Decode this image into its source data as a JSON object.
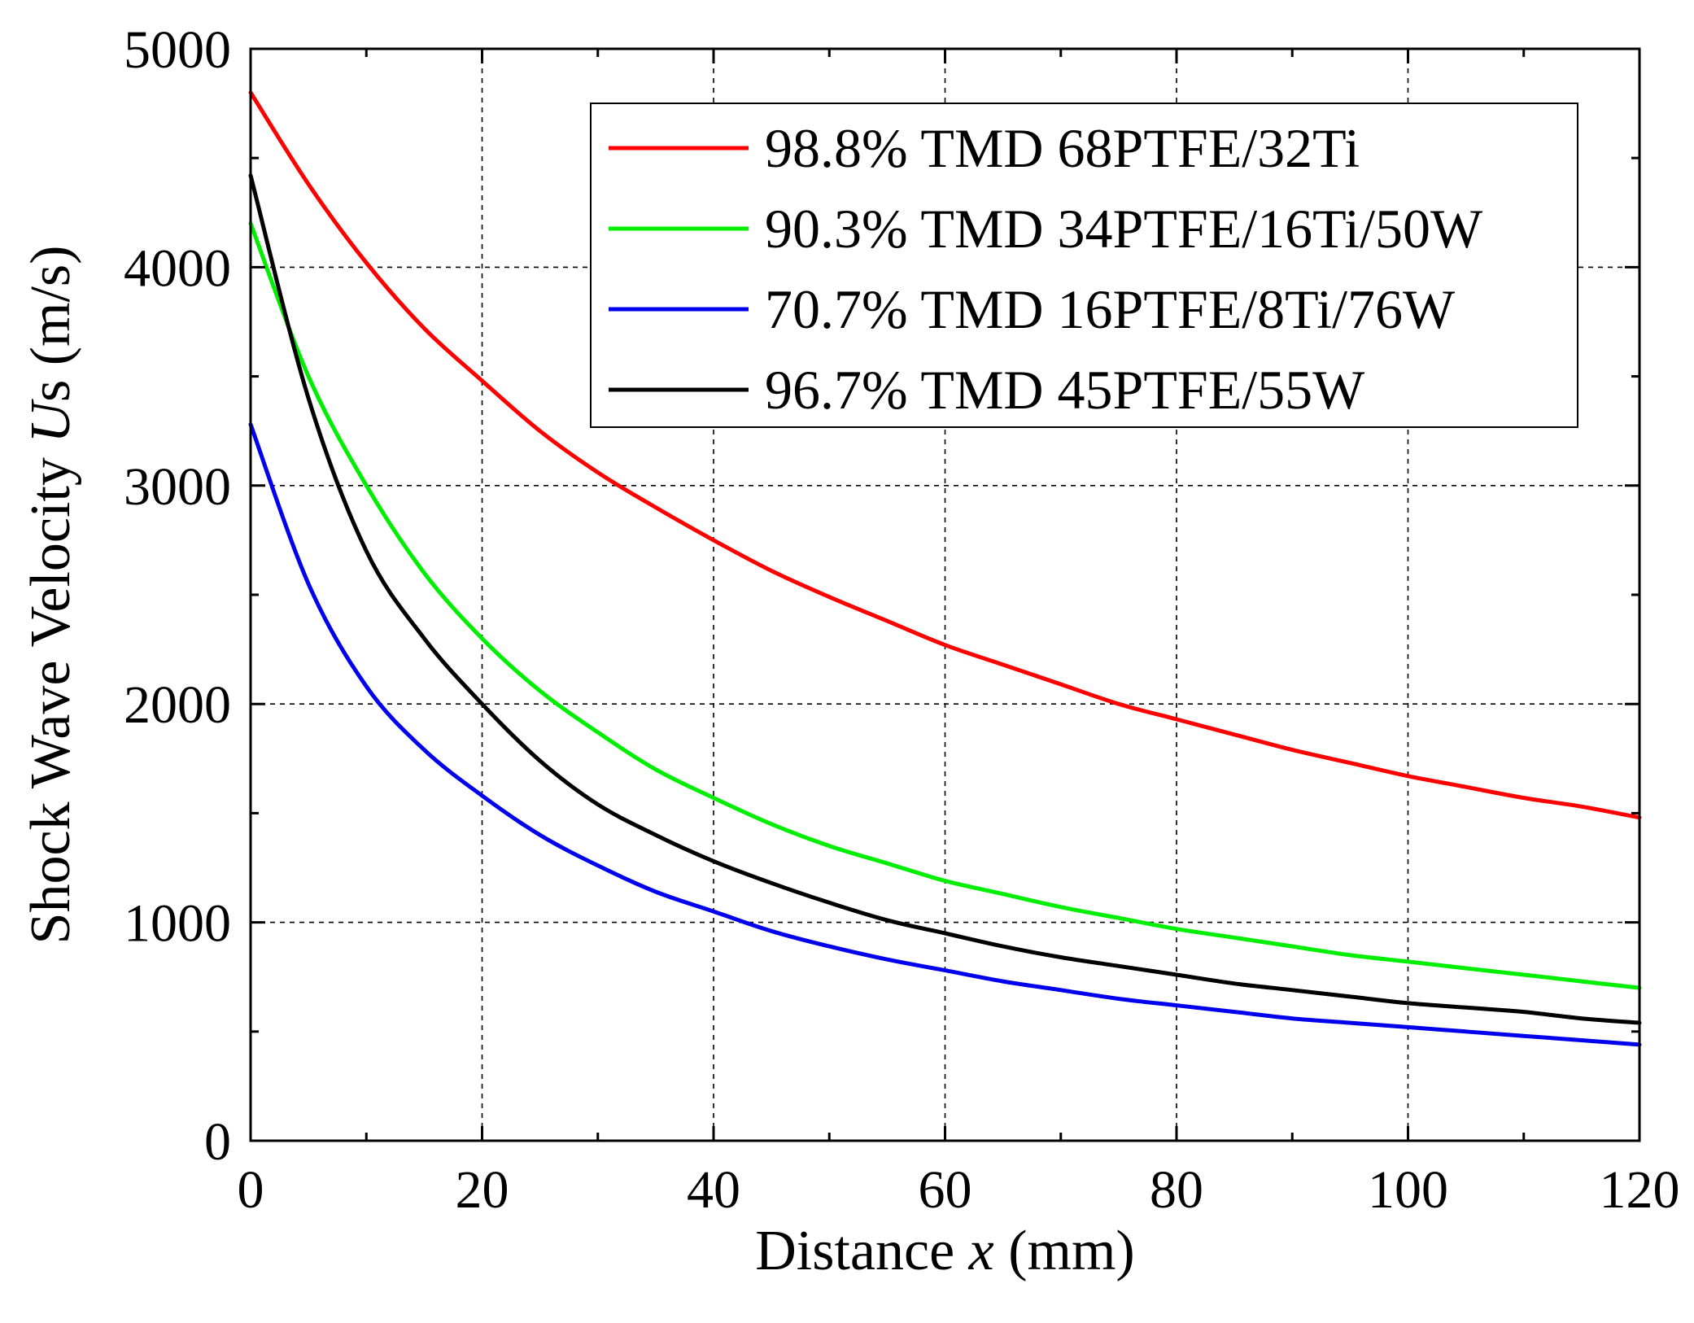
{
  "chart_data": {
    "type": "line",
    "title": "",
    "xlabel": {
      "pre": "Distance ",
      "var": "x",
      "post": " (mm)"
    },
    "ylabel": {
      "pre": "Shock Wave Velocity ",
      "var": "U",
      "post": "s (m/s)"
    },
    "xlim": [
      0,
      120
    ],
    "ylim": [
      0,
      5000
    ],
    "xticks": [
      0,
      20,
      40,
      60,
      80,
      100,
      120
    ],
    "yticks": [
      0,
      1000,
      2000,
      3000,
      4000,
      5000
    ],
    "xtick_labels": [
      "0",
      "20",
      "40",
      "60",
      "80",
      "100",
      "120"
    ],
    "ytick_labels": [
      "0",
      "1000",
      "2000",
      "3000",
      "4000",
      "5000"
    ],
    "grid": true,
    "legend_position": "top-right",
    "series": [
      {
        "name": "98.8% TMD 68PTFE/32Ti",
        "color": "#ff0000",
        "x": [
          0,
          5,
          10,
          15,
          20,
          25,
          30,
          35,
          40,
          45,
          50,
          55,
          60,
          65,
          70,
          75,
          80,
          85,
          90,
          95,
          100,
          105,
          110,
          115,
          120
        ],
        "y": [
          4800,
          4380,
          4020,
          3720,
          3480,
          3250,
          3060,
          2900,
          2750,
          2610,
          2490,
          2380,
          2270,
          2180,
          2090,
          2000,
          1930,
          1860,
          1790,
          1730,
          1670,
          1620,
          1570,
          1530,
          1480
        ]
      },
      {
        "name": "90.3% TMD 34PTFE/16Ti/50W",
        "color": "#00ee00",
        "x": [
          0,
          5,
          10,
          15,
          20,
          25,
          30,
          35,
          40,
          45,
          50,
          55,
          60,
          65,
          70,
          75,
          80,
          85,
          90,
          95,
          100,
          105,
          110,
          115,
          120
        ],
        "y": [
          4200,
          3500,
          3000,
          2600,
          2300,
          2060,
          1870,
          1700,
          1570,
          1450,
          1350,
          1270,
          1190,
          1130,
          1070,
          1020,
          970,
          930,
          890,
          850,
          820,
          790,
          760,
          730,
          700
        ]
      },
      {
        "name": "70.7% TMD 16PTFE/8Ti/76W",
        "color": "#0000ee",
        "x": [
          0,
          5,
          10,
          15,
          20,
          25,
          30,
          35,
          40,
          45,
          50,
          55,
          60,
          65,
          70,
          75,
          80,
          85,
          90,
          95,
          100,
          105,
          110,
          115,
          120
        ],
        "y": [
          3280,
          2550,
          2080,
          1790,
          1580,
          1400,
          1260,
          1140,
          1050,
          960,
          890,
          830,
          780,
          730,
          690,
          650,
          620,
          590,
          560,
          540,
          520,
          500,
          480,
          460,
          440
        ]
      },
      {
        "name": "96.7% TMD 45PTFE/55W",
        "color": "#000000",
        "x": [
          0,
          5,
          10,
          15,
          20,
          25,
          30,
          35,
          40,
          45,
          50,
          55,
          60,
          65,
          70,
          75,
          80,
          85,
          90,
          95,
          100,
          105,
          110,
          115,
          120
        ],
        "y": [
          4420,
          3400,
          2700,
          2300,
          2000,
          1740,
          1540,
          1400,
          1280,
          1180,
          1090,
          1010,
          950,
          890,
          840,
          800,
          760,
          720,
          690,
          660,
          630,
          610,
          590,
          560,
          540
        ]
      }
    ]
  }
}
